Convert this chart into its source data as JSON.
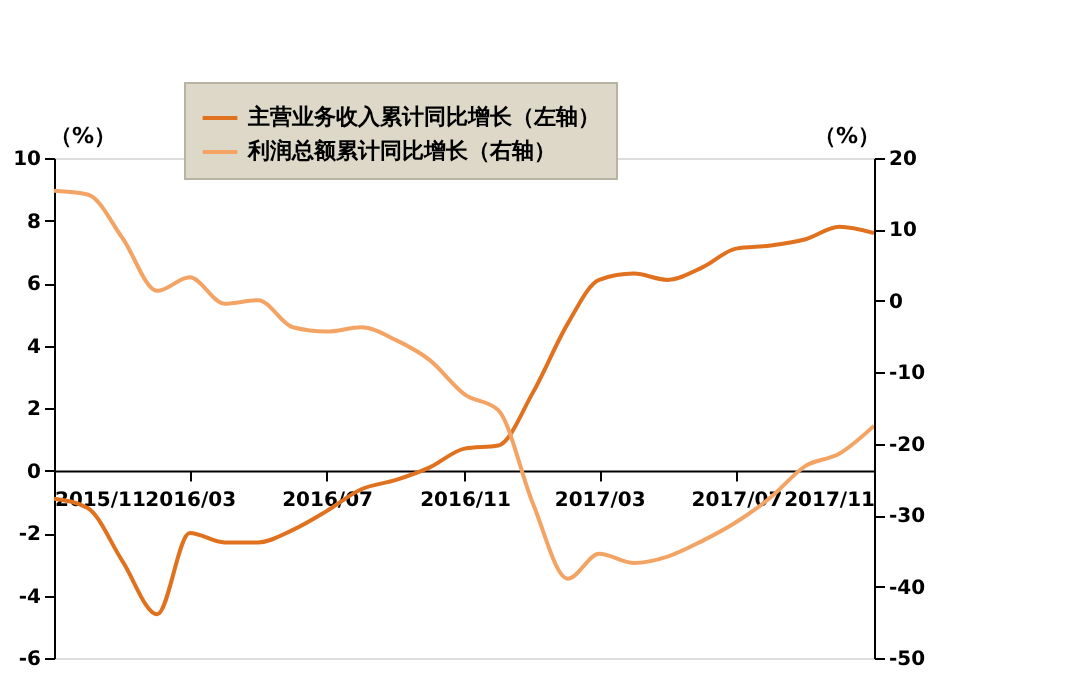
{
  "chart_data": {
    "type": "line",
    "x": [
      "2015-11",
      "2015-12",
      "2016-01",
      "2016-02",
      "2016-03",
      "2016-04",
      "2016-05",
      "2016-06",
      "2016-07",
      "2016-08",
      "2016-09",
      "2016-10",
      "2016-11",
      "2016-12",
      "2017-01",
      "2017-02",
      "2017-03",
      "2017-04",
      "2017-05",
      "2017-06",
      "2017-07",
      "2017-08",
      "2017-09",
      "2017-10",
      "2017-11"
    ],
    "series": [
      {
        "name": "主营业务收入累计同比增长（左轴）",
        "color": "#e0711f",
        "values": [
          -0.9,
          -1.2,
          -2.9,
          -4.6,
          -2.0,
          -2.3,
          -2.3,
          -1.9,
          -1.3,
          -0.6,
          -0.3,
          0.1,
          0.7,
          0.8,
          2.5,
          4.7,
          6.1,
          6.3,
          6.1,
          6.5,
          7.1,
          7.2,
          7.4,
          7.8,
          7.6
        ]
      },
      {
        "name": "利润总额累计同比增长（右轴）",
        "color": "#f3a464",
        "axis": "y2",
        "values": [
          15.4,
          14.9,
          8.8,
          1.4,
          3.3,
          -0.4,
          0.1,
          -3.7,
          -4.3,
          -3.7,
          -5.5,
          -8.3,
          -13.1,
          -15.3,
          -28.4,
          -38.9,
          -35.4,
          -36.7,
          -35.8,
          -33.6,
          -31.0,
          -27.5,
          -23.1,
          -21.4,
          -17.5
        ]
      }
    ],
    "xlim": [
      "2015-11",
      "2017-11"
    ],
    "xticks": [
      {
        "value": "2015-11",
        "label": "2015/11"
      },
      {
        "value": "2016-03",
        "label": "2016/03"
      },
      {
        "value": "2016-07",
        "label": "2016/07"
      },
      {
        "value": "2016-11",
        "label": "2016/11"
      },
      {
        "value": "2017-03",
        "label": "2017/03"
      },
      {
        "value": "2017-07",
        "label": "2017/07"
      },
      {
        "value": "2017-11",
        "label": "2017/11"
      }
    ],
    "ylim": [
      -6,
      10
    ],
    "yticks": [
      -6,
      -4,
      -2,
      0,
      2,
      4,
      6,
      8,
      10
    ],
    "y2lim": [
      -50,
      20
    ],
    "y2ticks": [
      -50,
      -40,
      -30,
      -20,
      -10,
      0,
      10,
      20
    ],
    "ylabel": "（%）",
    "y2label": "（%）",
    "legend": "top",
    "grid": false,
    "marker": "none",
    "line_style": "solid"
  }
}
